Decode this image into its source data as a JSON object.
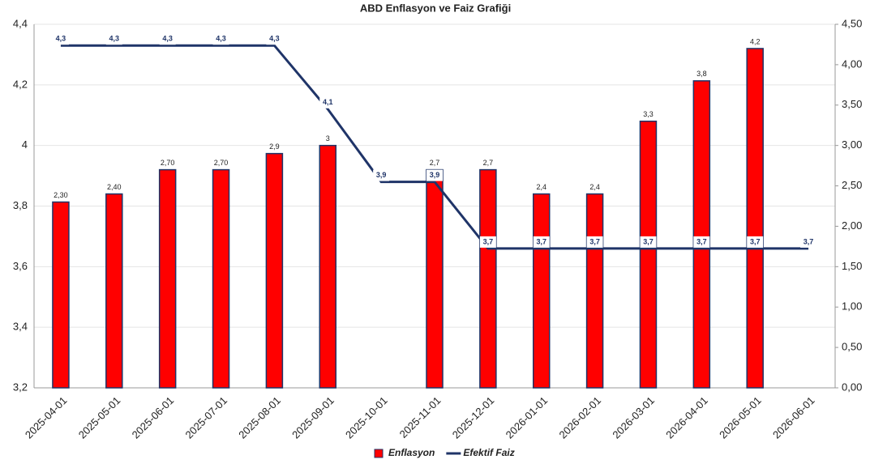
{
  "chart_data": {
    "type": "bar-line",
    "title": "ABD Enflasyon ve Faiz Grafiği",
    "categories": [
      "2025-04-01",
      "2025-05-01",
      "2025-06-01",
      "2025-07-01",
      "2025-08-01",
      "2025-09-01",
      "2025-10-01",
      "2025-11-01",
      "2025-12-01",
      "2026-01-01",
      "2026-02-01",
      "2026-03-01",
      "2026-04-01",
      "2026-05-01",
      "2026-06-01"
    ],
    "series": [
      {
        "name": "Enflasyon",
        "type": "bar",
        "axis": "y2",
        "color": "#ff0000",
        "edgecolor": "#1f3468",
        "values": [
          2.3,
          2.4,
          2.7,
          2.7,
          2.9,
          3,
          null,
          2.7,
          2.7,
          2.4,
          2.4,
          3.3,
          3.8,
          4.2,
          null
        ],
        "value_labels": [
          "2,30",
          "2,40",
          "2,70",
          "2,70",
          "2,9",
          "3",
          null,
          "2,7",
          "2,7",
          "2,4",
          "2,4",
          "3,3",
          "3,8",
          "4,2",
          null
        ]
      },
      {
        "name": "Efektif Faiz",
        "type": "line",
        "axis": "y",
        "color": "#1f3468",
        "values": [
          4.33,
          4.33,
          4.33,
          4.33,
          4.33,
          4.12,
          3.88,
          3.88,
          3.66,
          3.66,
          3.66,
          3.66,
          3.66,
          3.66,
          3.66
        ],
        "value_labels": [
          "4,3",
          "4,3",
          "4,3",
          "4,3",
          "4,3",
          "4,1",
          "3,9",
          "3,9",
          "3,7",
          "3,7",
          "3,7",
          "3,7",
          "3,7",
          "3,7",
          "3,7"
        ]
      }
    ],
    "ylim": [
      3.2,
      4.4
    ],
    "yticks": [
      {
        "value": 3.2,
        "label": "3,2"
      },
      {
        "value": 3.4,
        "label": "3,4"
      },
      {
        "value": 3.6,
        "label": "3,6"
      },
      {
        "value": 3.8,
        "label": "3,8"
      },
      4,
      {
        "value": 4.2,
        "label": "4,2"
      },
      {
        "value": 4.4,
        "label": "4,4"
      }
    ],
    "y2lim": [
      0,
      4.5
    ],
    "y2ticks": [
      {
        "value": 0,
        "label": "0,00"
      },
      {
        "value": 0.5,
        "label": "0,50"
      },
      {
        "value": 1,
        "label": "1,00"
      },
      {
        "value": 1.5,
        "label": "1,50"
      },
      {
        "value": 2,
        "label": "2,00"
      },
      {
        "value": 2.5,
        "label": "2,50"
      },
      {
        "value": 3,
        "label": "3,00"
      },
      {
        "value": 3.5,
        "label": "3,50"
      },
      {
        "value": 4,
        "label": "4,00"
      },
      {
        "value": 4.5,
        "label": "4,50"
      }
    ],
    "grid": true,
    "legend": "bottom"
  }
}
